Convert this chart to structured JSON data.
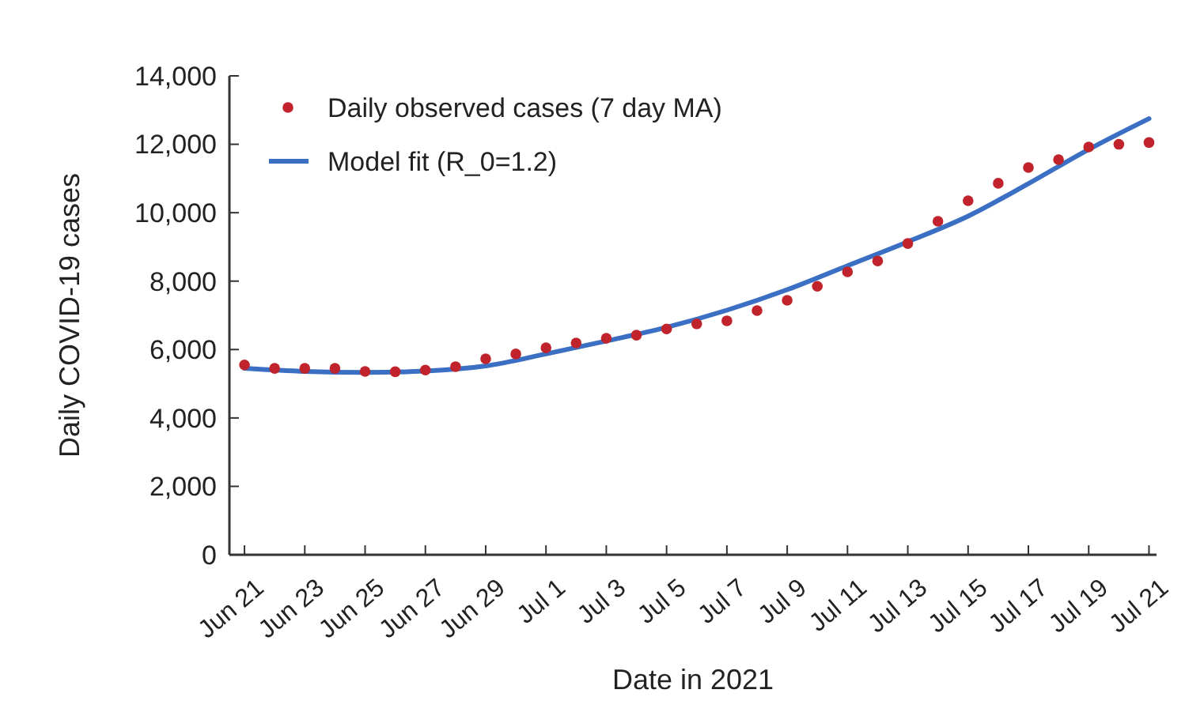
{
  "chart_data": {
    "type": "scatter",
    "xlabel": "Date in 2021",
    "ylabel": "Daily COVID-19 cases",
    "xlim": [
      "2021-06-20T12:00",
      "2021-07-21T06:00"
    ],
    "ylim": [
      0,
      14000
    ],
    "yticks": [
      {
        "value": 0,
        "label": "0"
      },
      {
        "value": 2000,
        "label": "2,000"
      },
      {
        "value": 4000,
        "label": "4,000"
      },
      {
        "value": 6000,
        "label": "6,000"
      },
      {
        "value": 8000,
        "label": "8,000"
      },
      {
        "value": 10000,
        "label": "10,000"
      },
      {
        "value": 12000,
        "label": "12,000"
      },
      {
        "value": 14000,
        "label": "14,000"
      }
    ],
    "xticks": [
      {
        "value": "2021-06-21",
        "label": "Jun 21"
      },
      {
        "value": "2021-06-23",
        "label": "Jun 23"
      },
      {
        "value": "2021-06-25",
        "label": "Jun 25"
      },
      {
        "value": "2021-06-27",
        "label": "Jun 27"
      },
      {
        "value": "2021-06-29",
        "label": "Jun 29"
      },
      {
        "value": "2021-07-01",
        "label": "Jul 1"
      },
      {
        "value": "2021-07-03",
        "label": "Jul 3"
      },
      {
        "value": "2021-07-05",
        "label": "Jul 5"
      },
      {
        "value": "2021-07-07",
        "label": "Jul 7"
      },
      {
        "value": "2021-07-09",
        "label": "Jul 9"
      },
      {
        "value": "2021-07-11",
        "label": "Jul 11"
      },
      {
        "value": "2021-07-13",
        "label": "Jul 13"
      },
      {
        "value": "2021-07-15",
        "label": "Jul 15"
      },
      {
        "value": "2021-07-17",
        "label": "Jul 17"
      },
      {
        "value": "2021-07-19",
        "label": "Jul 19"
      },
      {
        "value": "2021-07-21",
        "label": "Jul 21"
      }
    ],
    "legend": "top left",
    "grid": false,
    "series": [
      {
        "name": "Daily observed cases (7 day MA)",
        "marker": "circle",
        "color": "#c0232b",
        "x": [
          "2021-06-21",
          "2021-06-22",
          "2021-06-23",
          "2021-06-24",
          "2021-06-25",
          "2021-06-26",
          "2021-06-27",
          "2021-06-28",
          "2021-06-29",
          "2021-06-30",
          "2021-07-01",
          "2021-07-02",
          "2021-07-03",
          "2021-07-04",
          "2021-07-05",
          "2021-07-06",
          "2021-07-07",
          "2021-07-08",
          "2021-07-09",
          "2021-07-10",
          "2021-07-11",
          "2021-07-12",
          "2021-07-13",
          "2021-07-14",
          "2021-07-15",
          "2021-07-16",
          "2021-07-17",
          "2021-07-18",
          "2021-07-19",
          "2021-07-20",
          "2021-07-21"
        ],
        "values": [
          5550,
          5450,
          5450,
          5450,
          5360,
          5350,
          5400,
          5500,
          5730,
          5870,
          6050,
          6190,
          6330,
          6420,
          6600,
          6750,
          6840,
          7140,
          7440,
          7850,
          8270,
          8590,
          9100,
          9750,
          10350,
          10860,
          11320,
          11550,
          11920,
          12000,
          12050
        ]
      },
      {
        "name": "Model fit (R_0=1.2)",
        "type": "line",
        "marker": "none",
        "line_style": "solid",
        "color": "#3a6fc4",
        "x": [
          "2021-06-21",
          "2021-06-23",
          "2021-06-25",
          "2021-06-27",
          "2021-06-29",
          "2021-07-01",
          "2021-07-03",
          "2021-07-05",
          "2021-07-07",
          "2021-07-09",
          "2021-07-11",
          "2021-07-13",
          "2021-07-15",
          "2021-07-17",
          "2021-07-19",
          "2021-07-21"
        ],
        "values": [
          5450,
          5360,
          5330,
          5370,
          5520,
          5870,
          6250,
          6650,
          7150,
          7750,
          8450,
          9150,
          9900,
          10850,
          11850,
          12750
        ]
      }
    ]
  }
}
